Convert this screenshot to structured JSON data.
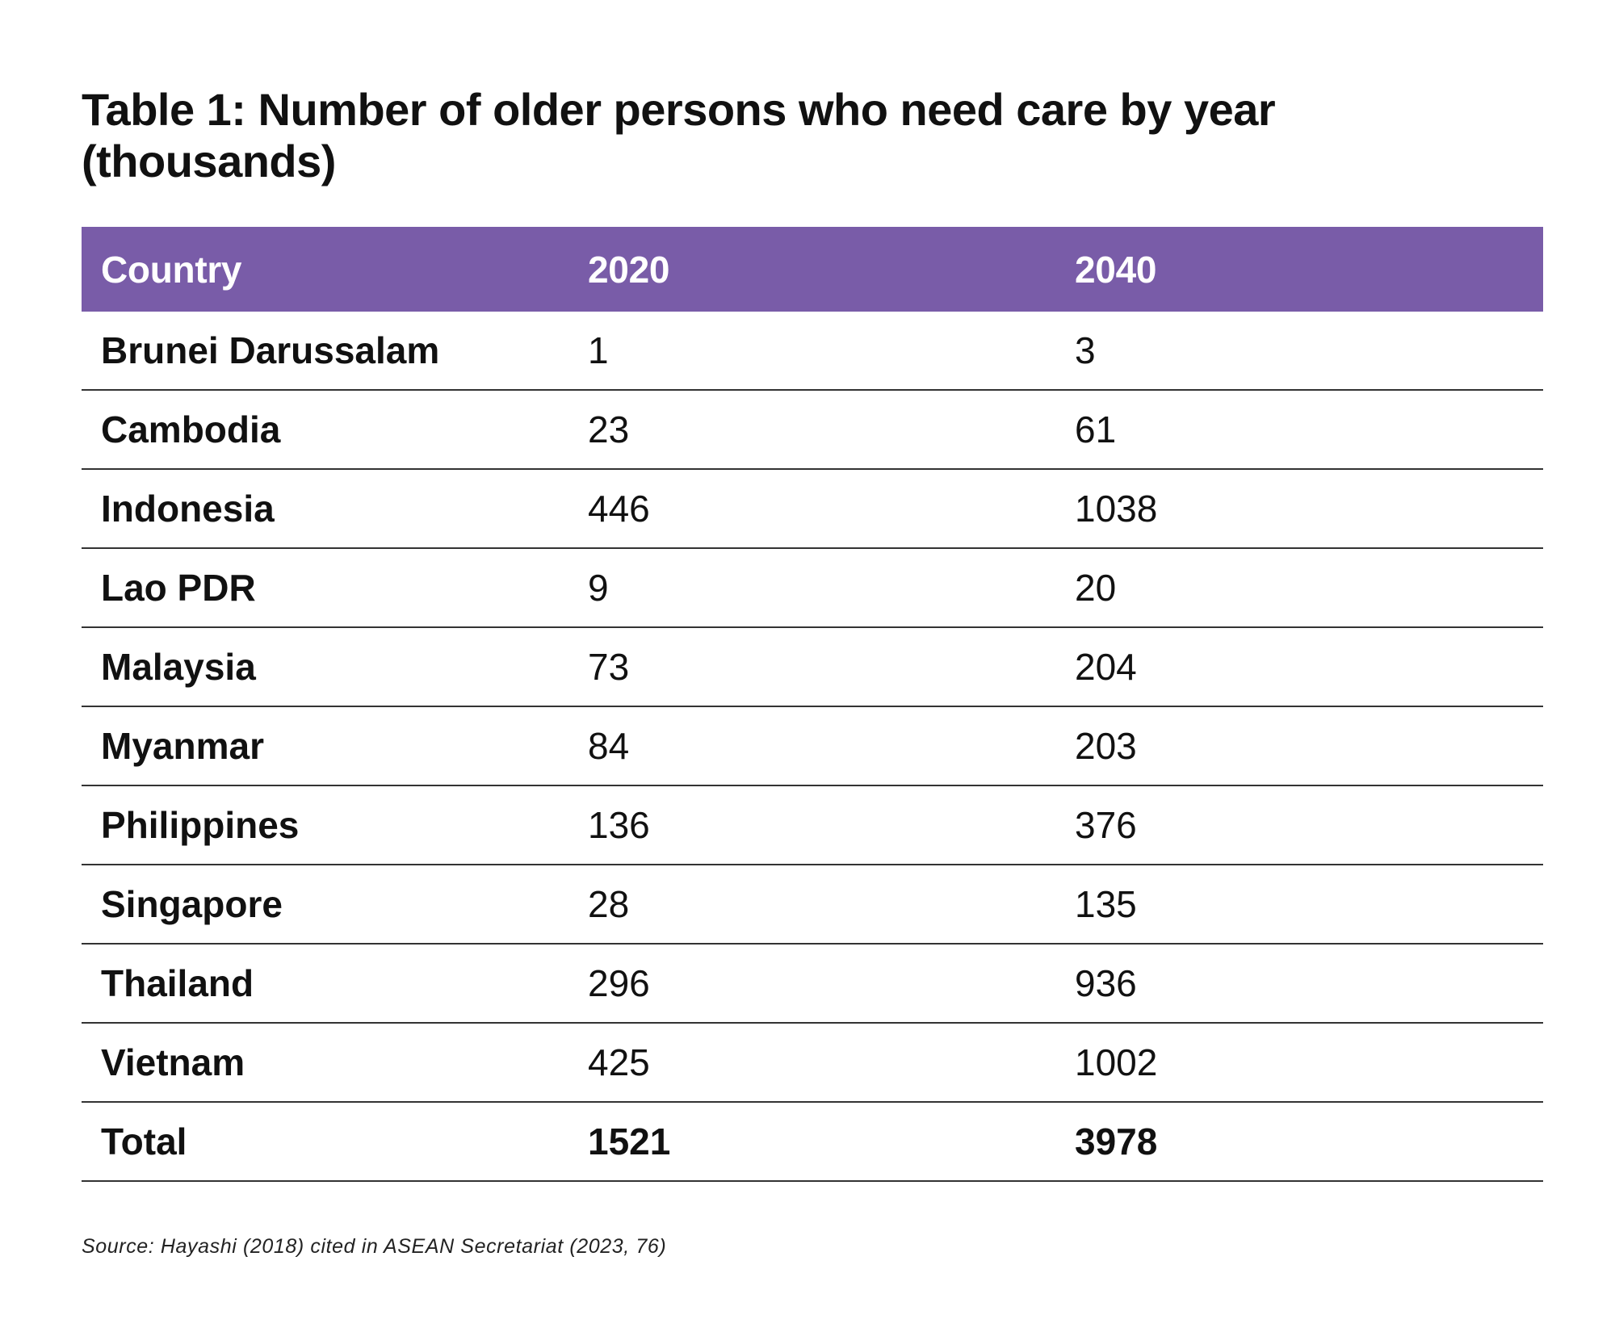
{
  "title": "Table 1: Number of older persons who need care by year (thousands)",
  "table": {
    "headers": [
      "Country",
      "2020",
      "2040"
    ],
    "rows": [
      {
        "country": "Brunei Darussalam",
        "y2020": "1",
        "y2040": "3"
      },
      {
        "country": "Cambodia",
        "y2020": "23",
        "y2040": "61"
      },
      {
        "country": "Indonesia",
        "y2020": "446",
        "y2040": "1038"
      },
      {
        "country": "Lao PDR",
        "y2020": "9",
        "y2040": "20"
      },
      {
        "country": "Malaysia",
        "y2020": "73",
        "y2040": "204"
      },
      {
        "country": "Myanmar",
        "y2020": "84",
        "y2040": "203"
      },
      {
        "country": "Philippines",
        "y2020": "136",
        "y2040": "376"
      },
      {
        "country": "Singapore",
        "y2020": "28",
        "y2040": "135"
      },
      {
        "country": "Thailand",
        "y2020": "296",
        "y2040": "936"
      },
      {
        "country": "Vietnam",
        "y2020": "425",
        "y2040": "1002"
      }
    ],
    "total": {
      "country": "Total",
      "y2020": "1521",
      "y2040": "3978"
    }
  },
  "source": "Source: Hayashi (2018) cited in ASEAN Secretariat (2023, 76)",
  "colors": {
    "header_background": "#795ca8",
    "header_text": "#ffffff",
    "rule": "#333333"
  }
}
